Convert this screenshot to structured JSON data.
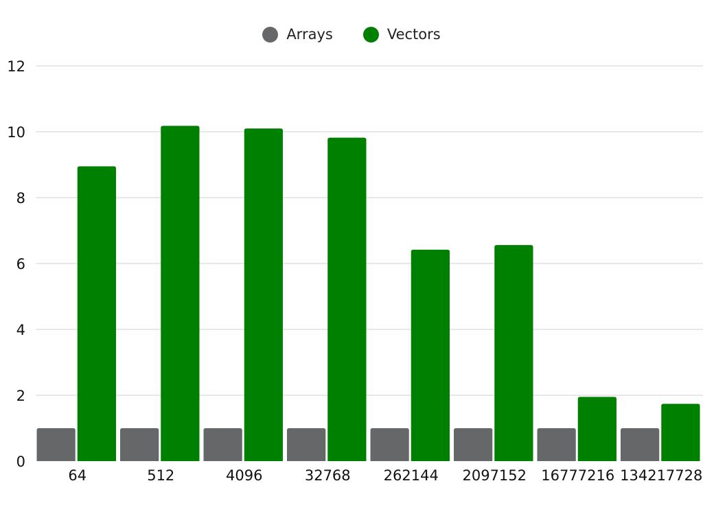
{
  "chart_data": {
    "type": "bar",
    "title": "",
    "xlabel": "",
    "ylabel": "",
    "categories": [
      "64",
      "512",
      "4096",
      "32768",
      "262144",
      "2097152",
      "16777216",
      "134217728"
    ],
    "series": [
      {
        "name": "Arrays",
        "color": "#666769",
        "values": [
          1,
          1,
          1,
          1,
          1,
          1,
          1,
          1
        ]
      },
      {
        "name": "Vectors",
        "color": "#008000",
        "values": [
          8.95,
          10.18,
          10.1,
          9.82,
          6.42,
          6.56,
          1.95,
          1.74
        ]
      }
    ],
    "ylim": [
      0,
      12
    ],
    "yticks": [
      0,
      2,
      4,
      6,
      8,
      10,
      12
    ],
    "grid": true,
    "legend_position": "top-center"
  },
  "legend": {
    "series_0": "Arrays",
    "series_1": "Vectors"
  }
}
